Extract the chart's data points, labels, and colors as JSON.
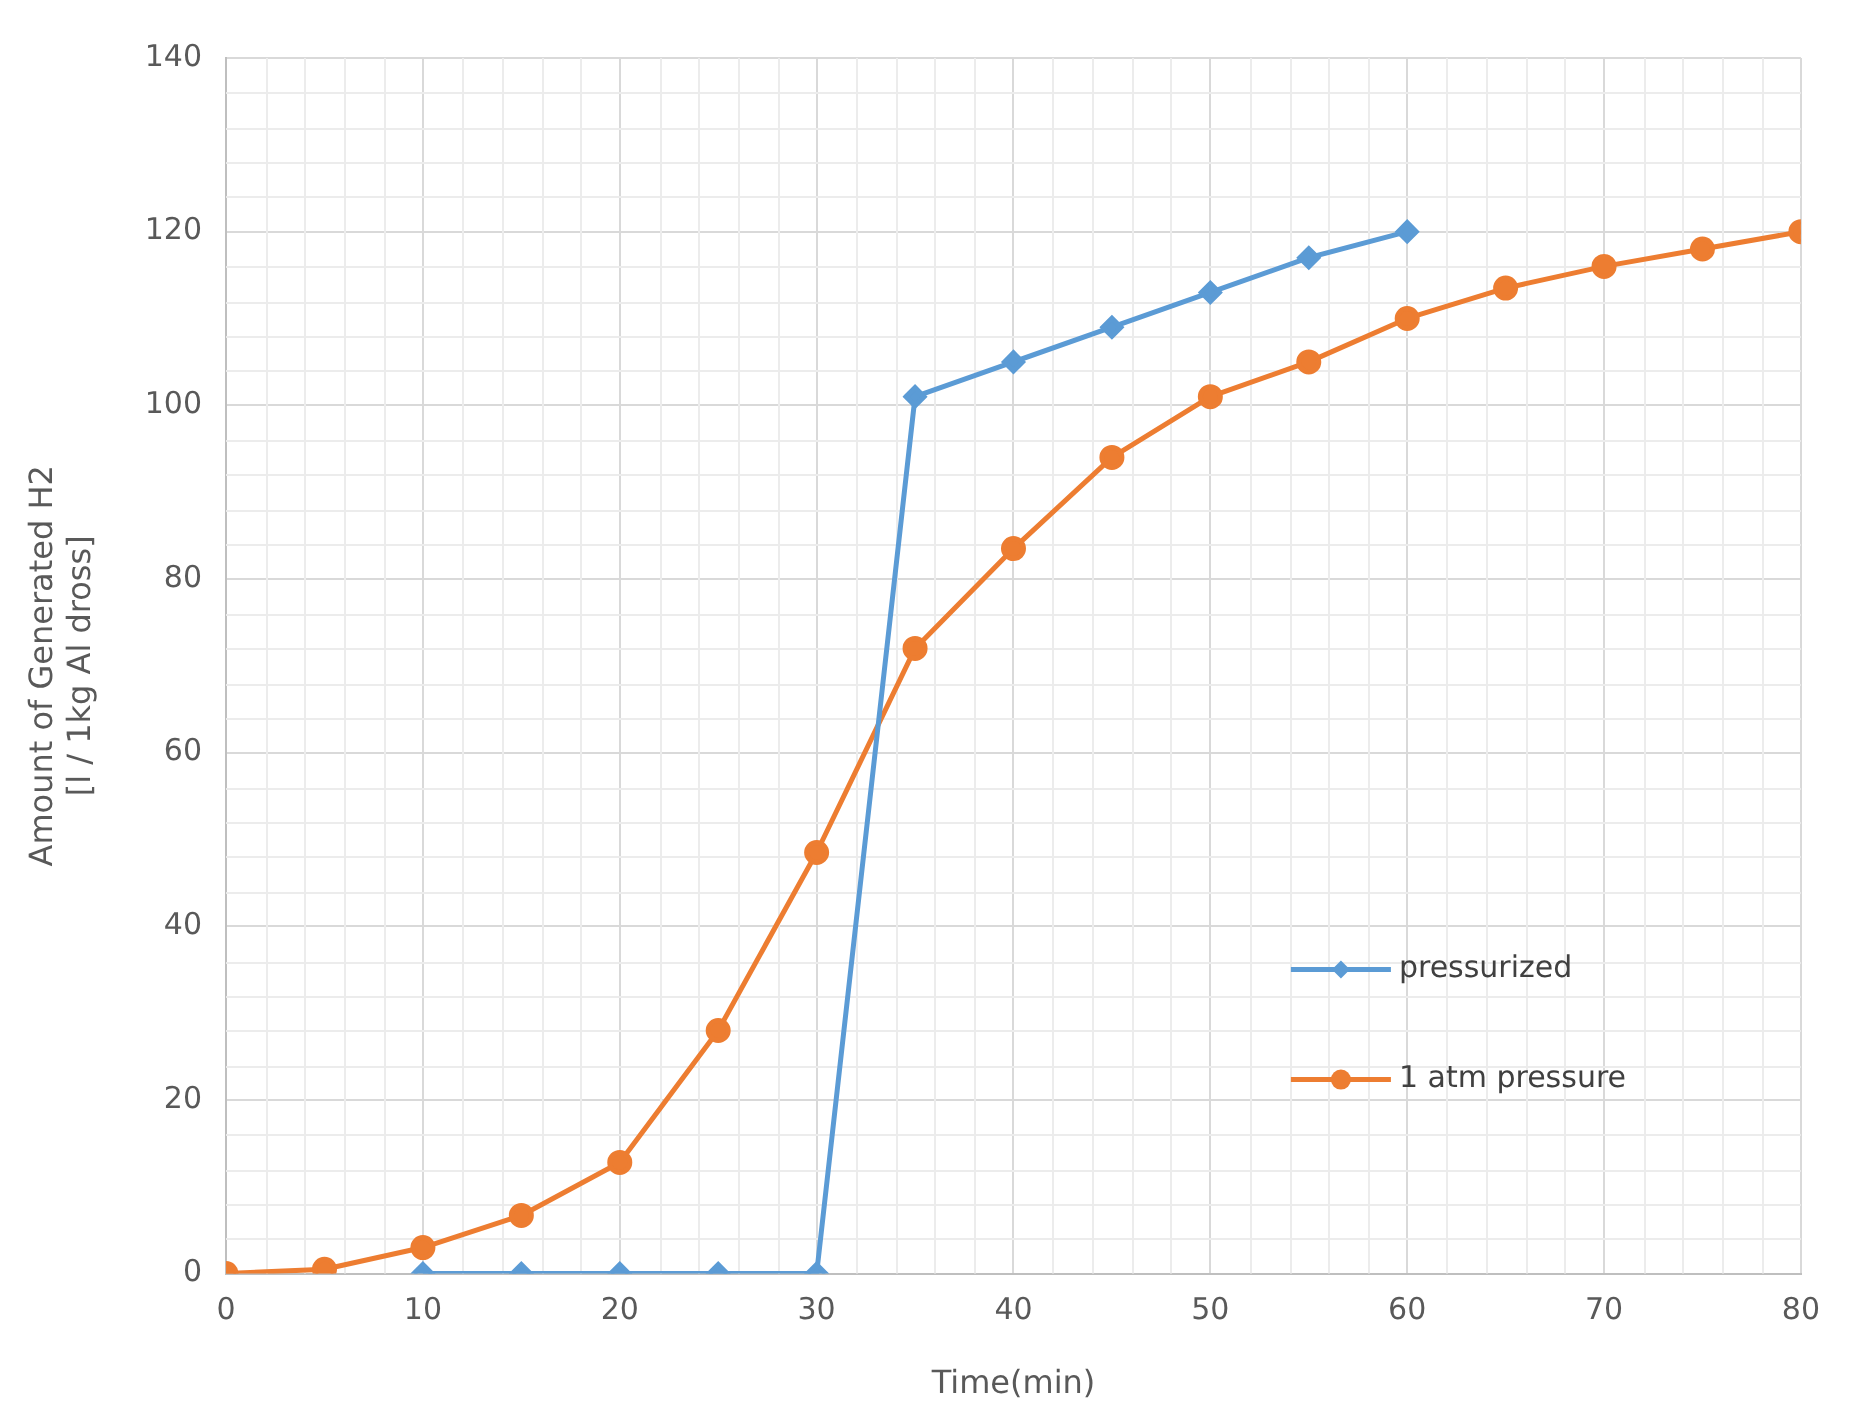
{
  "chart_data": {
    "type": "line",
    "xlabel": "Time(min)",
    "ylabel": "Amount of Generated H2\n[l / 1kg Al dross]",
    "series": [
      {
        "name": "pressurized",
        "color": "#5b9bd5",
        "marker": "diamond",
        "x": [
          10,
          15,
          20,
          25,
          30,
          35,
          40,
          45,
          50,
          55,
          60
        ],
        "values": [
          0,
          0,
          0,
          0,
          0,
          101,
          105,
          109,
          113,
          117,
          120
        ]
      },
      {
        "name": "1 atm pressure",
        "color": "#ed7d31",
        "marker": "circle",
        "x": [
          0,
          5,
          10,
          15,
          20,
          25,
          30,
          35,
          40,
          45,
          50,
          55,
          60,
          65,
          70,
          75,
          80
        ],
        "values": [
          0,
          0.5,
          3,
          6.7,
          12.8,
          28,
          48.5,
          72,
          83.5,
          94,
          101,
          105,
          110,
          113.5,
          116,
          118,
          120
        ]
      }
    ],
    "xlim": [
      0,
      80
    ],
    "xticks": [
      0,
      10,
      20,
      30,
      40,
      50,
      60,
      70,
      80
    ],
    "ylim": [
      0,
      140
    ],
    "yticks": [
      0,
      20,
      40,
      60,
      80,
      100,
      120,
      140
    ],
    "grid": true,
    "legend": "bottom right"
  }
}
